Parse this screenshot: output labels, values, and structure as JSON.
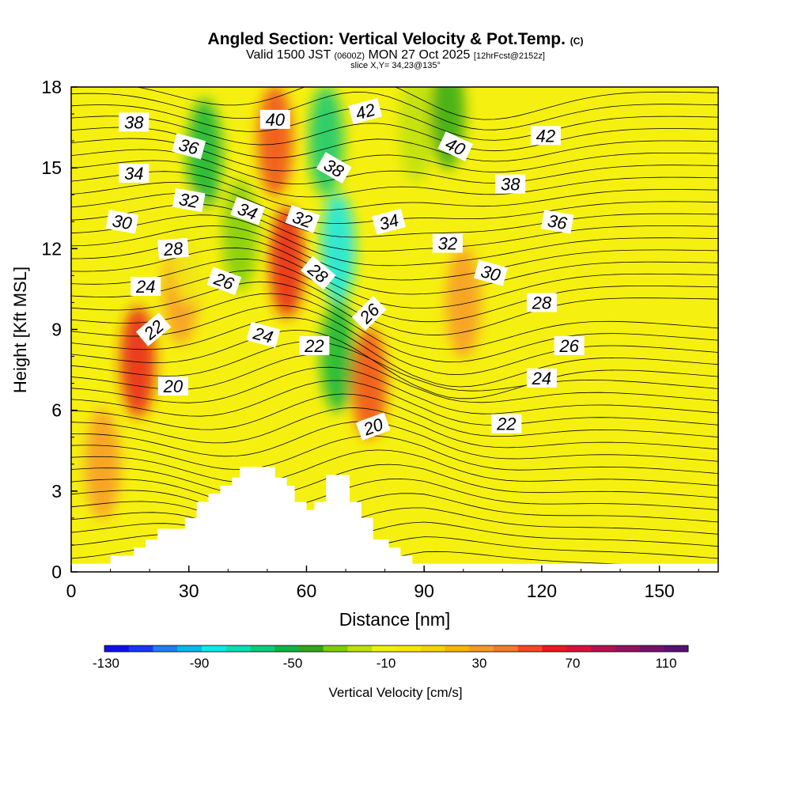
{
  "header": {
    "title": "Angled Section: Vertical Velocity & Pot.Temp.",
    "title_mark": "(C)",
    "valid_prefix": "Valid 1500 JST",
    "valid_utc": "(0600Z)",
    "valid_date": "MON 27 Oct 2025",
    "forecast": "[12hrFcst@2152z]",
    "slice": "slice X,Y= 34,23@135°"
  },
  "colorbar": {
    "label": "Vertical Velocity [cm/s]",
    "tick_labels": [
      "-130",
      "-90",
      "-50",
      "-10",
      "30",
      "70",
      "110"
    ],
    "colors": [
      "#1010e8",
      "#1838f0",
      "#1e80f0",
      "#10b4f0",
      "#10e8f0",
      "#10dcb4",
      "#10c878",
      "#10b440",
      "#30a818",
      "#7ccc10",
      "#bce010",
      "#f0f010",
      "#fae600",
      "#fad200",
      "#fab400",
      "#f89828",
      "#f47a28",
      "#f04a20",
      "#e81c1c",
      "#d2143c",
      "#b41050",
      "#961060",
      "#78106c",
      "#5a1076"
    ]
  },
  "chart_data": {
    "type": "heatmap",
    "xlabel": "Distance [nm]",
    "ylabel": "Height [Kft MSL]",
    "xlim": [
      0,
      165
    ],
    "ylim": [
      0,
      18
    ],
    "xticks": [
      0,
      30,
      60,
      90,
      120,
      150
    ],
    "yticks": [
      0,
      3,
      6,
      9,
      12,
      15,
      18
    ],
    "field": "Vertical Velocity [cm/s]",
    "field_range": [
      -130,
      110
    ],
    "background_value": 0,
    "velocity_features": [
      {
        "x": 17,
        "y": 7.8,
        "value": 50
      },
      {
        "x": 28,
        "y": 10.5,
        "value": 25
      },
      {
        "x": 34,
        "y": 15.5,
        "value": -55
      },
      {
        "x": 43,
        "y": 12.5,
        "value": -40
      },
      {
        "x": 52,
        "y": 16,
        "value": 40
      },
      {
        "x": 55,
        "y": 11.5,
        "value": 50
      },
      {
        "x": 65,
        "y": 16,
        "value": -70
      },
      {
        "x": 68,
        "y": 12,
        "value": -85
      },
      {
        "x": 68,
        "y": 8,
        "value": -60
      },
      {
        "x": 76,
        "y": 7,
        "value": 40
      },
      {
        "x": 88,
        "y": 16.5,
        "value": -30
      },
      {
        "x": 96,
        "y": 17,
        "value": -50
      },
      {
        "x": 100,
        "y": 10,
        "value": 20
      },
      {
        "x": 8,
        "y": 4,
        "value": 25
      },
      {
        "x": 30,
        "y": 12,
        "value": -20
      }
    ],
    "terrain": [
      [
        0,
        0.3
      ],
      [
        10,
        0.3
      ],
      [
        10,
        0.6
      ],
      [
        16,
        0.6
      ],
      [
        16,
        0.9
      ],
      [
        19,
        0.9
      ],
      [
        19,
        1.2
      ],
      [
        22,
        1.2
      ],
      [
        22,
        1.6
      ],
      [
        29,
        1.6
      ],
      [
        29,
        2.0
      ],
      [
        32,
        2.0
      ],
      [
        32,
        2.6
      ],
      [
        35,
        2.6
      ],
      [
        35,
        2.9
      ],
      [
        38,
        2.9
      ],
      [
        38,
        3.2
      ],
      [
        41,
        3.2
      ],
      [
        41,
        3.5
      ],
      [
        43,
        3.5
      ],
      [
        43,
        3.9
      ],
      [
        52,
        3.9
      ],
      [
        52,
        3.5
      ],
      [
        55,
        3.5
      ],
      [
        55,
        3.2
      ],
      [
        57,
        3.2
      ],
      [
        57,
        2.6
      ],
      [
        60,
        2.6
      ],
      [
        60,
        2.3
      ],
      [
        62,
        2.3
      ],
      [
        62,
        2.6
      ],
      [
        65,
        2.6
      ],
      [
        65,
        3.6
      ],
      [
        71,
        3.6
      ],
      [
        71,
        2.6
      ],
      [
        74,
        2.6
      ],
      [
        74,
        2.0
      ],
      [
        77,
        2.0
      ],
      [
        77,
        1.2
      ],
      [
        81,
        1.2
      ],
      [
        81,
        0.9
      ],
      [
        84,
        0.9
      ],
      [
        84,
        0.6
      ],
      [
        87,
        0.6
      ],
      [
        87,
        0.3
      ],
      [
        165,
        0.3
      ]
    ],
    "theta_contour_labels": [
      {
        "value": "38",
        "x": 16,
        "y": 16.7,
        "angle": 0
      },
      {
        "value": "36",
        "x": 30,
        "y": 15.8,
        "angle": 15
      },
      {
        "value": "34",
        "x": 16,
        "y": 14.8,
        "angle": 0
      },
      {
        "value": "32",
        "x": 30,
        "y": 13.8,
        "angle": 10
      },
      {
        "value": "30",
        "x": 13,
        "y": 13.0,
        "angle": 10
      },
      {
        "value": "28",
        "x": 26,
        "y": 12.0,
        "angle": -5
      },
      {
        "value": "24",
        "x": 19,
        "y": 10.6,
        "angle": 0
      },
      {
        "value": "22",
        "x": 21,
        "y": 9.0,
        "angle": -40
      },
      {
        "value": "20",
        "x": 26,
        "y": 6.9,
        "angle": 0
      },
      {
        "value": "40",
        "x": 52,
        "y": 16.8,
        "angle": 0
      },
      {
        "value": "42",
        "x": 75,
        "y": 17.1,
        "angle": -15
      },
      {
        "value": "38",
        "x": 67,
        "y": 15.0,
        "angle": 30
      },
      {
        "value": "34",
        "x": 45,
        "y": 13.4,
        "angle": 20
      },
      {
        "value": "32",
        "x": 59,
        "y": 13.1,
        "angle": 20
      },
      {
        "value": "26",
        "x": 39,
        "y": 10.8,
        "angle": 20
      },
      {
        "value": "28",
        "x": 63,
        "y": 11.1,
        "angle": 40
      },
      {
        "value": "24",
        "x": 49,
        "y": 8.8,
        "angle": 15
      },
      {
        "value": "22",
        "x": 62,
        "y": 8.4,
        "angle": 0
      },
      {
        "value": "26",
        "x": 76,
        "y": 9.6,
        "angle": -45
      },
      {
        "value": "20",
        "x": 77,
        "y": 5.4,
        "angle": -20
      },
      {
        "value": "40",
        "x": 98,
        "y": 15.8,
        "angle": 25
      },
      {
        "value": "42",
        "x": 121,
        "y": 16.2,
        "angle": 0
      },
      {
        "value": "38",
        "x": 112,
        "y": 14.4,
        "angle": 0
      },
      {
        "value": "34",
        "x": 81,
        "y": 13.0,
        "angle": -15
      },
      {
        "value": "36",
        "x": 124,
        "y": 13.0,
        "angle": 10
      },
      {
        "value": "32",
        "x": 96,
        "y": 12.2,
        "angle": 0
      },
      {
        "value": "30",
        "x": 107,
        "y": 11.1,
        "angle": 15
      },
      {
        "value": "28",
        "x": 120,
        "y": 10.0,
        "angle": 0
      },
      {
        "value": "26",
        "x": 127,
        "y": 8.4,
        "angle": 0
      },
      {
        "value": "24",
        "x": 120,
        "y": 7.2,
        "angle": 0
      },
      {
        "value": "22",
        "x": 111,
        "y": 5.5,
        "angle": 0
      }
    ]
  }
}
